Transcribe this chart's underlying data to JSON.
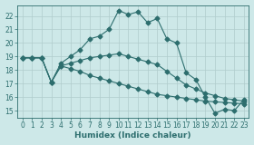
{
  "xlabel": "Humidex (Indice chaleur)",
  "bg_color": "#cde8e8",
  "grid_color": "#b0cccc",
  "line_color": "#2d6e6e",
  "tick_color": "#2d6e6e",
  "xlim": [
    -0.5,
    23.5
  ],
  "ylim": [
    14.5,
    22.8
  ],
  "xticks": [
    0,
    1,
    2,
    3,
    4,
    5,
    6,
    7,
    8,
    9,
    10,
    11,
    12,
    13,
    14,
    15,
    16,
    17,
    18,
    19,
    20,
    21,
    22,
    23
  ],
  "yticks": [
    15,
    16,
    17,
    18,
    19,
    20,
    21,
    22
  ],
  "curve1_x": [
    0,
    1,
    2,
    3,
    4,
    5,
    6,
    7,
    8,
    9,
    10,
    11,
    12,
    13,
    14,
    15,
    16,
    17,
    18,
    19,
    20,
    21,
    22,
    23
  ],
  "curve1_y": [
    18.9,
    18.9,
    18.9,
    17.1,
    18.5,
    19.0,
    19.5,
    20.3,
    20.5,
    21.0,
    22.4,
    22.1,
    22.3,
    21.5,
    21.8,
    20.3,
    20.0,
    17.8,
    17.3,
    16.0,
    14.8,
    15.1,
    15.0,
    15.8
  ],
  "curve2_x": [
    0,
    1,
    2,
    3,
    4,
    5,
    6,
    7,
    8,
    9,
    10,
    11,
    12,
    13,
    14,
    15,
    16,
    17,
    18,
    19,
    20,
    21,
    22,
    23
  ],
  "curve2_y": [
    18.9,
    18.9,
    18.9,
    17.1,
    18.3,
    18.1,
    17.9,
    17.6,
    17.4,
    17.2,
    17.0,
    16.8,
    16.6,
    16.4,
    16.2,
    16.1,
    16.0,
    15.9,
    15.8,
    15.7,
    15.65,
    15.6,
    15.55,
    15.5
  ],
  "curve3_x": [
    0,
    1,
    2,
    3,
    4,
    5,
    6,
    7,
    8,
    9,
    10,
    11,
    12,
    13,
    14,
    15,
    16,
    17,
    18,
    19,
    20,
    21,
    22,
    23
  ],
  "curve3_y": [
    18.9,
    18.9,
    18.9,
    17.1,
    18.3,
    18.5,
    18.7,
    18.9,
    19.0,
    19.1,
    19.2,
    19.0,
    18.8,
    18.6,
    18.4,
    17.9,
    17.4,
    16.9,
    16.6,
    16.3,
    16.1,
    15.9,
    15.8,
    15.7
  ],
  "marker": "D",
  "markersize": 2.5,
  "linewidth": 0.8
}
